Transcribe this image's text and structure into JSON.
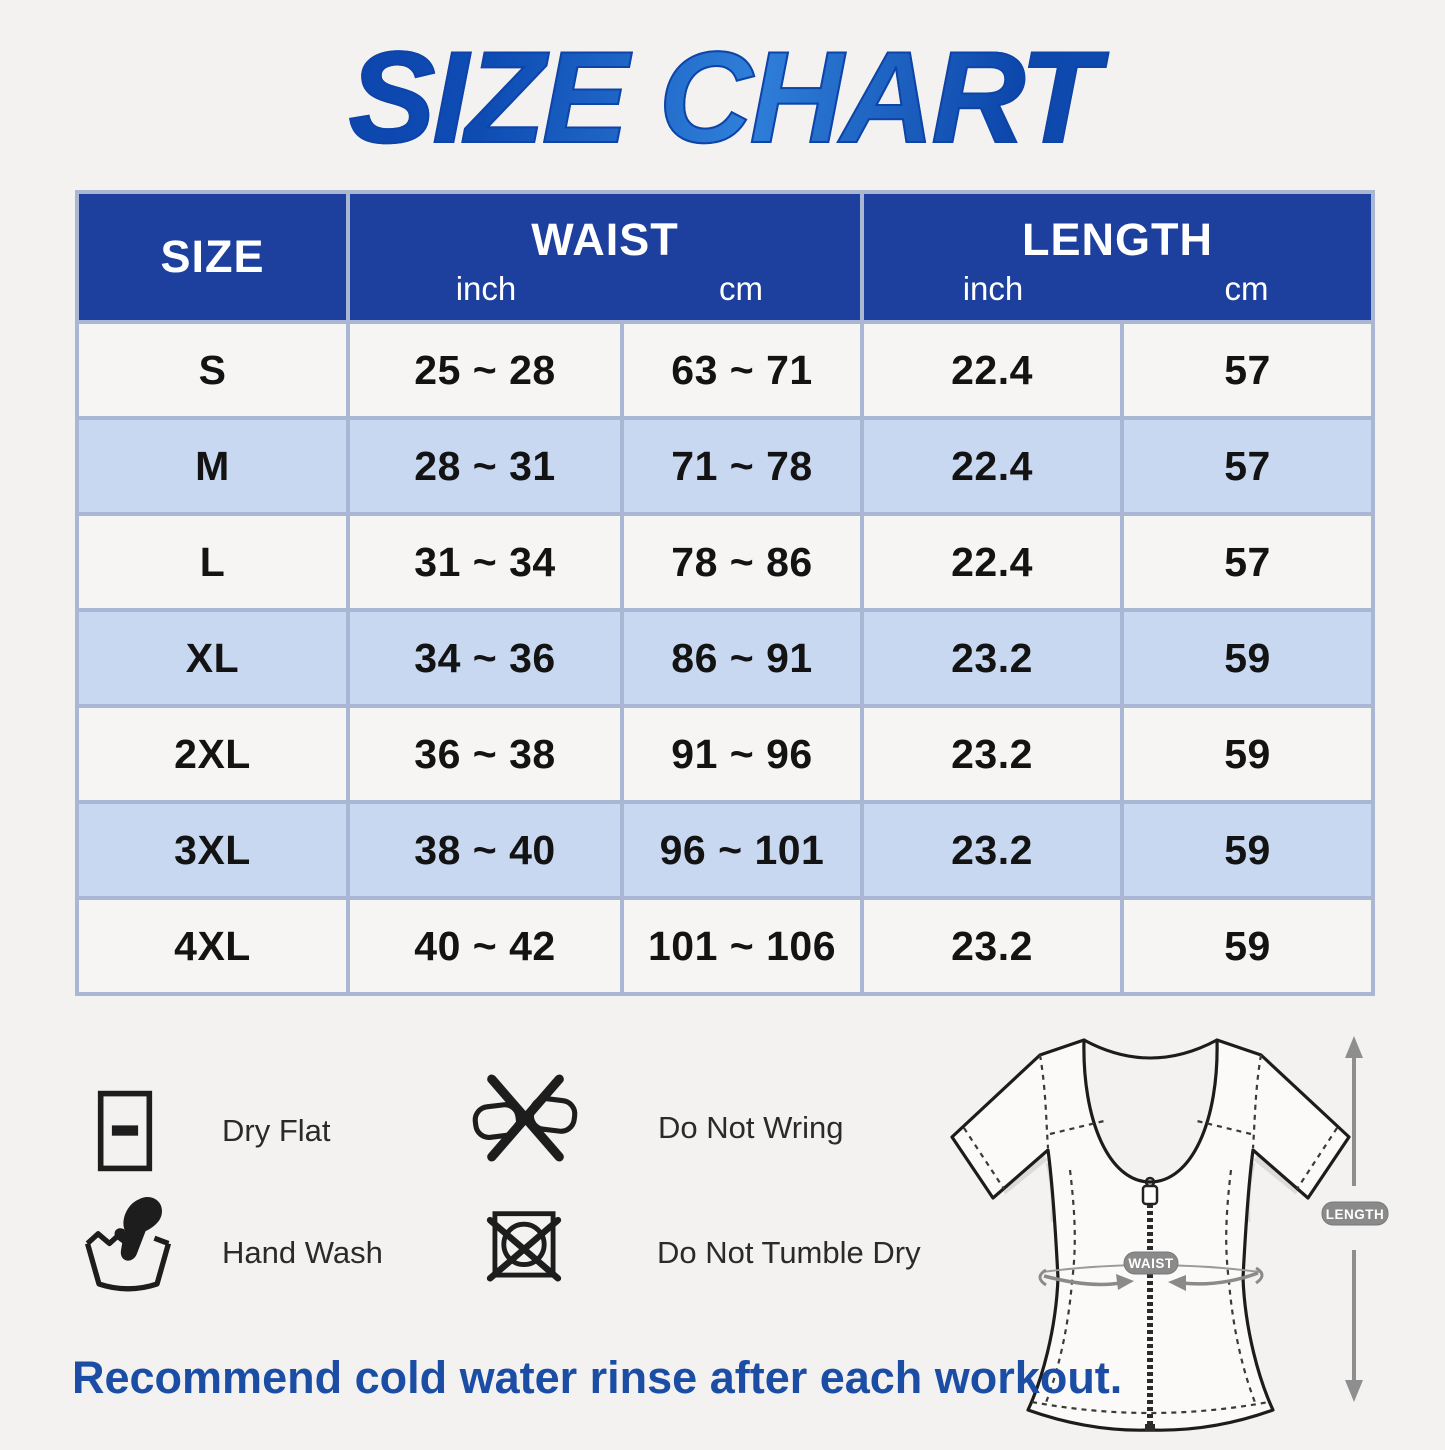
{
  "title": "SIZE CHART",
  "table": {
    "header": {
      "size": "SIZE",
      "waist": "WAIST",
      "length": "LENGTH",
      "unit_inch": "inch",
      "unit_cm": "cm"
    },
    "rows": [
      [
        "S",
        "25 ~ 28",
        "63 ~ 71",
        "22.4",
        "57"
      ],
      [
        "M",
        "28 ~ 31",
        "71 ~ 78",
        "22.4",
        "57"
      ],
      [
        "L",
        "31 ~ 34",
        "78 ~ 86",
        "22.4",
        "57"
      ],
      [
        "XL",
        "34 ~ 36",
        "86 ~ 91",
        "23.2",
        "59"
      ],
      [
        "2XL",
        "36 ~ 38",
        "91 ~ 96",
        "23.2",
        "59"
      ],
      [
        "3XL",
        "38 ~ 40",
        "96 ~ 101",
        "23.2",
        "59"
      ],
      [
        "4XL",
        "40 ~ 42",
        "101 ~ 106",
        "23.2",
        "59"
      ]
    ]
  },
  "chart_data": {
    "type": "table",
    "title": "SIZE CHART",
    "columns": [
      "SIZE",
      "WAIST inch",
      "WAIST cm",
      "LENGTH inch",
      "LENGTH cm"
    ],
    "rows": [
      [
        "S",
        "25 ~ 28",
        "63 ~ 71",
        "22.4",
        "57"
      ],
      [
        "M",
        "28 ~ 31",
        "71 ~ 78",
        "22.4",
        "57"
      ],
      [
        "L",
        "31 ~ 34",
        "78 ~ 86",
        "22.4",
        "57"
      ],
      [
        "XL",
        "34 ~ 36",
        "86 ~ 91",
        "23.2",
        "59"
      ],
      [
        "2XL",
        "36 ~ 38",
        "91 ~ 96",
        "23.2",
        "59"
      ],
      [
        "3XL",
        "38 ~ 40",
        "96 ~ 101",
        "23.2",
        "59"
      ],
      [
        "4XL",
        "40 ~ 42",
        "101 ~ 106",
        "23.2",
        "59"
      ]
    ]
  },
  "care": {
    "items": [
      {
        "icon": "dry-flat-icon",
        "label": "Dry Flat"
      },
      {
        "icon": "do-not-wring-icon",
        "label": "Do Not Wring"
      },
      {
        "icon": "hand-wash-icon",
        "label": "Hand Wash"
      },
      {
        "icon": "do-not-tumble-dry-icon",
        "label": "Do Not Tumble Dry"
      }
    ]
  },
  "diagram": {
    "waist_label": "WAIST",
    "length_label": "LENGTH"
  },
  "note": "Recommend cold water rinse after each workout.",
  "colors": {
    "header_blue": "#1d409f",
    "row_blue": "#c8d8f0",
    "row_white": "#f6f5f3",
    "grid_line": "#a9b7d4",
    "title_blue": "#1148ac",
    "note_blue": "#1b4da5",
    "callout_gray": "#8a8a8a"
  }
}
